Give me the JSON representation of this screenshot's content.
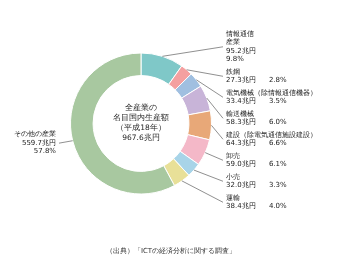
{
  "chart_data": {
    "type": "doughnut",
    "categories": [
      "情報通信\n産業\n95.2兆円\n9.8%",
      "鉄鋼\n27.3兆円      2.8%",
      "電気機械（除情報通信機器）\n33.4兆円      3.5%",
      "輸送機械\n58.3兆円      6.0%",
      "建設（除電気通信施設建設）\n64.3兆円      6.6%",
      "卸売\n59.0兆円      6.1%",
      "小売\n32.0兆円      3.3%",
      "運輸\n38.4兆円      4.0%",
      "その他の産業\n559.7兆円\n57.8%"
    ],
    "values": [
      9.8,
      2.8,
      3.5,
      6.0,
      6.6,
      6.1,
      3.3,
      4.0,
      57.8
    ],
    "colors": [
      "#7fc8c8",
      "#f4a0a0",
      "#a0bfe0",
      "#c8b4d8",
      "#e8a878",
      "#f4b8c8",
      "#a8d4e8",
      "#e8e098",
      "#a8c8a0"
    ],
    "annotations": [
      "全産業の\n名目国内生産額\n（平成18年）\n967.6兆円",
      "（出典）「ICTの経済分析に関する調査」"
    ]
  }
}
